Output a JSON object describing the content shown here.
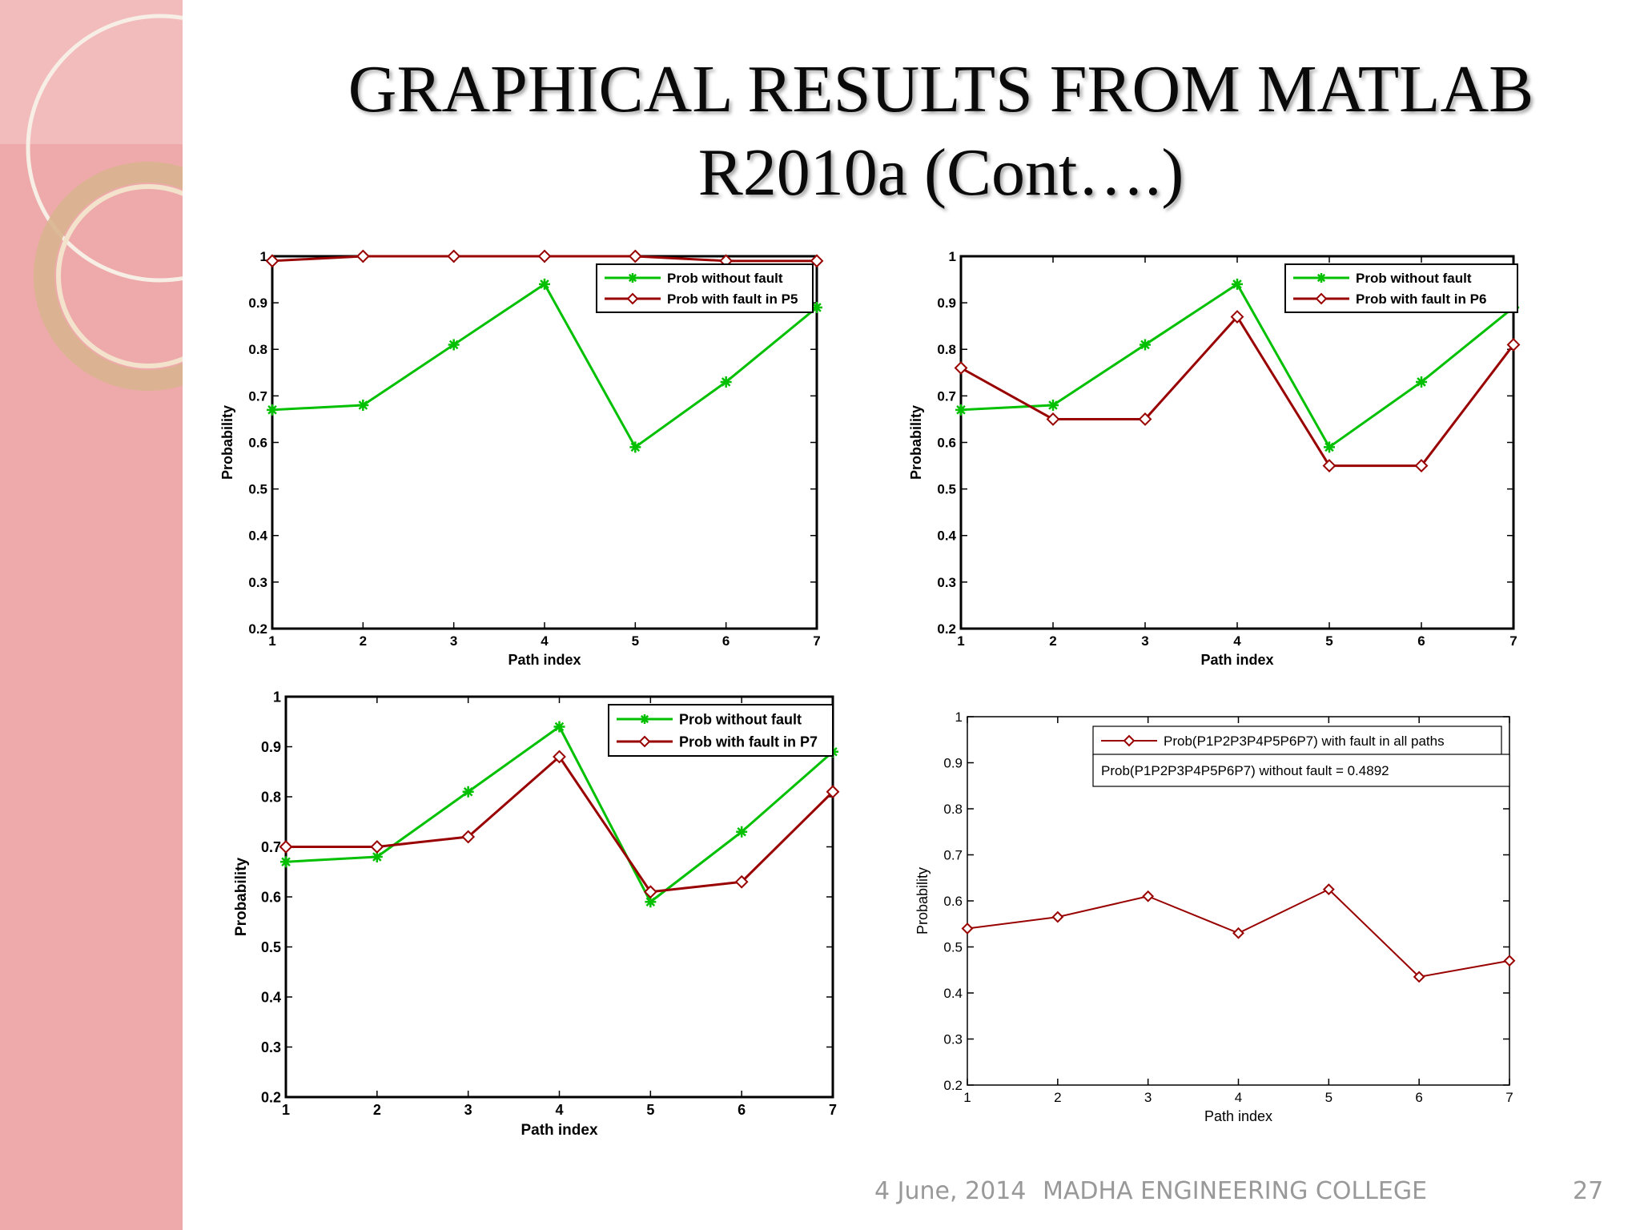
{
  "slide": {
    "title_line1": "GRAPHICAL RESULTS FROM MATLAB",
    "title_line2": "R2010a (Cont….)",
    "footer_date": "4 June, 2014",
    "footer_org": "MADHA ENGINEERING COLLEGE",
    "page_number": "27"
  },
  "colors": {
    "green": "#00c000",
    "red": "#990000",
    "band": "#eeaaaa"
  },
  "chart_data": [
    {
      "type": "line",
      "xlabel": "Path index",
      "ylabel": "Probability",
      "xlim": [
        1,
        7
      ],
      "ylim": [
        0.2,
        1
      ],
      "xticks": [
        "1",
        "2",
        "3",
        "4",
        "5",
        "6",
        "7"
      ],
      "yticks": [
        "0.2",
        "0.3",
        "0.4",
        "0.5",
        "0.6",
        "0.7",
        "0.8",
        "0.9",
        "1"
      ],
      "legend": "top-right",
      "grid": false,
      "x": [
        1,
        2,
        3,
        4,
        5,
        6,
        7
      ],
      "series": [
        {
          "name": "Prob without fault",
          "color": "#00c000",
          "marker": "star",
          "values": [
            0.67,
            0.68,
            0.81,
            0.94,
            0.59,
            0.73,
            0.89
          ]
        },
        {
          "name": "Prob with fault in P5",
          "color": "#990000",
          "marker": "diamond",
          "values": [
            0.99,
            1.0,
            1.0,
            1.0,
            1.0,
            0.99,
            0.99
          ]
        }
      ]
    },
    {
      "type": "line",
      "xlabel": "Path index",
      "ylabel": "Probability",
      "xlim": [
        1,
        7
      ],
      "ylim": [
        0.2,
        1
      ],
      "xticks": [
        "1",
        "2",
        "3",
        "4",
        "5",
        "6",
        "7"
      ],
      "yticks": [
        "0.2",
        "0.3",
        "0.4",
        "0.5",
        "0.6",
        "0.7",
        "0.8",
        "0.9",
        "1"
      ],
      "legend": "top-right",
      "grid": false,
      "x": [
        1,
        2,
        3,
        4,
        5,
        6,
        7
      ],
      "series": [
        {
          "name": "Prob without fault",
          "color": "#00c000",
          "marker": "star",
          "values": [
            0.67,
            0.68,
            0.81,
            0.94,
            0.59,
            0.73,
            0.89
          ]
        },
        {
          "name": "Prob with fault in P6",
          "color": "#990000",
          "marker": "diamond",
          "values": [
            0.76,
            0.65,
            0.65,
            0.87,
            0.55,
            0.55,
            0.81
          ]
        }
      ]
    },
    {
      "type": "line",
      "xlabel": "Path index",
      "ylabel": "Probability",
      "xlim": [
        1,
        7
      ],
      "ylim": [
        0.2,
        1
      ],
      "xticks": [
        "1",
        "2",
        "3",
        "4",
        "5",
        "6",
        "7"
      ],
      "yticks": [
        "0.2",
        "0.3",
        "0.4",
        "0.5",
        "0.6",
        "0.7",
        "0.8",
        "0.9",
        "1"
      ],
      "legend": "top-right",
      "grid": false,
      "x": [
        1,
        2,
        3,
        4,
        5,
        6,
        7
      ],
      "series": [
        {
          "name": "Prob without fault",
          "color": "#00c000",
          "marker": "star",
          "values": [
            0.67,
            0.68,
            0.81,
            0.94,
            0.59,
            0.73,
            0.89
          ]
        },
        {
          "name": "Prob with fault in P7",
          "color": "#990000",
          "marker": "diamond",
          "values": [
            0.7,
            0.7,
            0.72,
            0.88,
            0.61,
            0.63,
            0.81
          ]
        }
      ]
    },
    {
      "type": "line",
      "xlabel": "Path index",
      "ylabel": "Probability",
      "xlim": [
        1,
        7
      ],
      "ylim": [
        0.2,
        1
      ],
      "xticks": [
        "1",
        "2",
        "3",
        "4",
        "5",
        "6",
        "7"
      ],
      "yticks": [
        "0.2",
        "0.3",
        "0.4",
        "0.5",
        "0.6",
        "0.7",
        "0.8",
        "0.9",
        "1"
      ],
      "legend": "top-right",
      "grid": false,
      "annotation": "Prob(P1P2P3P4P5P6P7) without fault = 0.4892",
      "x": [
        1,
        2,
        3,
        4,
        5,
        6,
        7
      ],
      "series": [
        {
          "name": "Prob(P1P2P3P4P5P6P7) with fault in all paths",
          "color": "#990000",
          "marker": "diamond",
          "values": [
            0.54,
            0.565,
            0.61,
            0.53,
            0.625,
            0.435,
            0.47
          ]
        }
      ]
    }
  ]
}
